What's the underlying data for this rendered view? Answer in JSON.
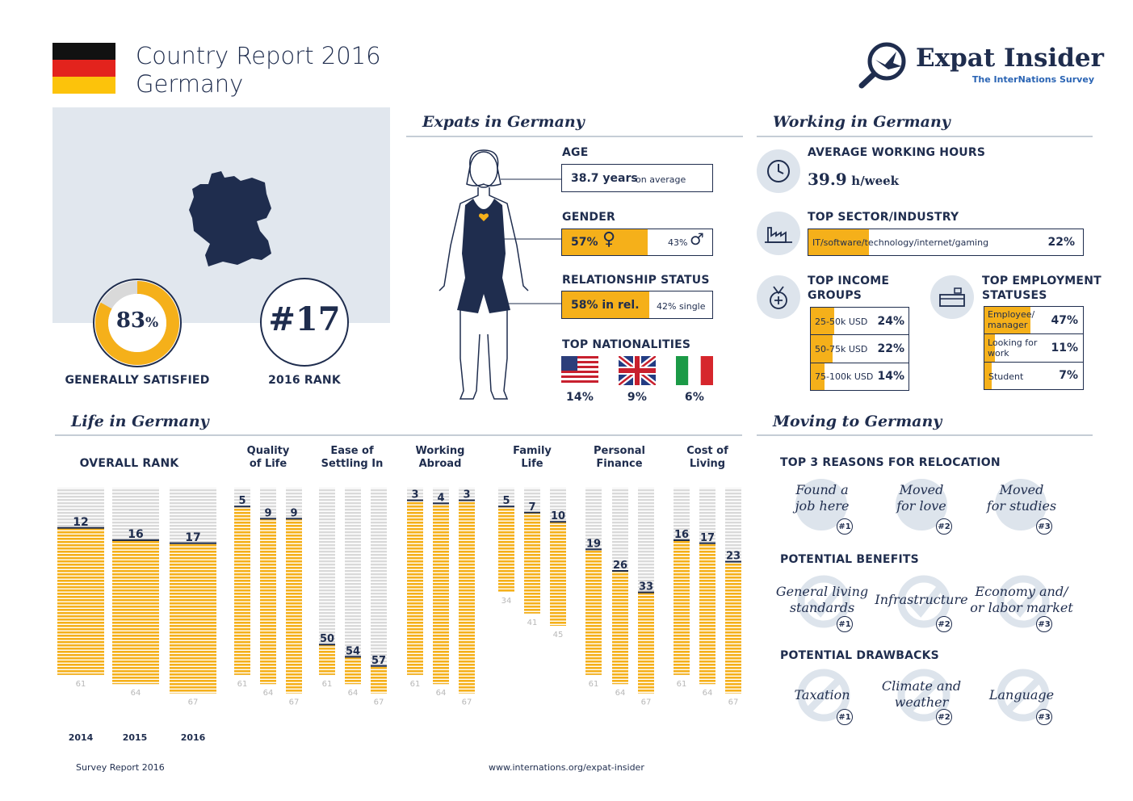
{
  "header": {
    "title_line1": "Country Report 2016",
    "title_line2": "Germany",
    "logo_title": "Expat Insider",
    "logo_subtitle": "The InterNations Survey"
  },
  "overview": {
    "satisfied_pct": "83",
    "satisfied_pct_sign": "%",
    "satisfied_value": 0.83,
    "satisfied_label": "GENERALLY SATISFIED",
    "rank": "#17",
    "rank_label": "2016 RANK"
  },
  "expats": {
    "title": "Expats in Germany",
    "age_label": "AGE",
    "age_value": "38.7 years",
    "age_suffix": "on average",
    "gender_label": "GENDER",
    "female_pct": "57%",
    "male_pct": "43%",
    "female_fraction": 0.57,
    "relationship_label": "RELATIONSHIP STATUS",
    "rel_value": "58% in rel.",
    "single_value": "42% single",
    "rel_fraction": 0.58,
    "nationalities_label": "TOP NATIONALITIES",
    "nationalities": [
      {
        "flag": "usa-flag-icon",
        "pct": "14%"
      },
      {
        "flag": "uk-flag-icon",
        "pct": "9%"
      },
      {
        "flag": "italy-flag-icon",
        "pct": "6%"
      }
    ]
  },
  "working": {
    "title": "Working in Germany",
    "hours_label": "AVERAGE WORKING HOURS",
    "hours_value": "39.9",
    "hours_unit": "h/week",
    "sector_label": "TOP SECTOR/INDUSTRY",
    "sector_name": "IT/software/technology/internet/gaming",
    "sector_pct": "22%",
    "sector_fraction": 0.22,
    "income_label_1": "TOP INCOME",
    "income_label_2": "GROUPS",
    "income": [
      {
        "name": "25-50k USD",
        "pct": "24%",
        "fraction": 0.24
      },
      {
        "name": "50-75k USD",
        "pct": "22%",
        "fraction": 0.22
      },
      {
        "name": "75-100k USD",
        "pct": "14%",
        "fraction": 0.14
      }
    ],
    "employment_label_1": "TOP EMPLOYMENT",
    "employment_label_2": "STATUSES",
    "employment": [
      {
        "name_1": "Employee/",
        "name_2": "manager",
        "pct": "47%",
        "fraction": 0.47
      },
      {
        "name_1": "Looking for",
        "name_2": "work",
        "pct": "11%",
        "fraction": 0.11
      },
      {
        "name_1": "Student",
        "name_2": "",
        "pct": "7%",
        "fraction": 0.07
      }
    ]
  },
  "life": {
    "title": "Life in Germany",
    "overall_label": "OVERALL RANK",
    "years": [
      "2014",
      "2015",
      "2016"
    ],
    "overall": [
      {
        "rank": 12,
        "total": 61
      },
      {
        "rank": 16,
        "total": 64
      },
      {
        "rank": 17,
        "total": 67
      }
    ],
    "categories": [
      {
        "label_1": "Quality",
        "label_2": "of Life",
        "bars": [
          {
            "rank": 5,
            "total": 61
          },
          {
            "rank": 9,
            "total": 64
          },
          {
            "rank": 9,
            "total": 67
          }
        ]
      },
      {
        "label_1": "Ease of",
        "label_2": "Settling In",
        "bars": [
          {
            "rank": 50,
            "total": 61
          },
          {
            "rank": 54,
            "total": 64
          },
          {
            "rank": 57,
            "total": 67
          }
        ]
      },
      {
        "label_1": "Working",
        "label_2": "Abroad",
        "bars": [
          {
            "rank": 3,
            "total": 61
          },
          {
            "rank": 4,
            "total": 64
          },
          {
            "rank": 3,
            "total": 67
          }
        ]
      },
      {
        "label_1": "Family",
        "label_2": "Life",
        "bars": [
          {
            "rank": 5,
            "total": 34
          },
          {
            "rank": 7,
            "total": 41
          },
          {
            "rank": 10,
            "total": 45
          }
        ]
      },
      {
        "label_1": "Personal",
        "label_2": "Finance",
        "bars": [
          {
            "rank": 19,
            "total": 61
          },
          {
            "rank": 26,
            "total": 64
          },
          {
            "rank": 33,
            "total": 67
          }
        ]
      },
      {
        "label_1": "Cost of",
        "label_2": "Living",
        "bars": [
          {
            "rank": 16,
            "total": 61
          },
          {
            "rank": 17,
            "total": 64
          },
          {
            "rank": 23,
            "total": 67
          }
        ]
      }
    ]
  },
  "moving": {
    "title": "Moving to Germany",
    "reasons_label": "TOP 3 REASONS FOR RELOCATION",
    "reasons": [
      {
        "line1": "Found a",
        "line2": "job here",
        "badge": "#1"
      },
      {
        "line1": "Moved",
        "line2": "for love",
        "badge": "#2"
      },
      {
        "line1": "Moved",
        "line2": "for studies",
        "badge": "#3"
      }
    ],
    "benefits_label": "POTENTIAL BENEFITS",
    "benefits": [
      {
        "line1": "General living",
        "line2": "standards",
        "badge": "#1"
      },
      {
        "line1": "Infrastructure",
        "line2": "",
        "badge": "#2"
      },
      {
        "line1": "Economy and/",
        "line2": "or labor market",
        "badge": "#3"
      }
    ],
    "drawbacks_label": "POTENTIAL DRAWBACKS",
    "drawbacks": [
      {
        "line1": "Taxation",
        "line2": "",
        "badge": "#1"
      },
      {
        "line1": "Climate and",
        "line2": "weather",
        "badge": "#2"
      },
      {
        "line1": "Language",
        "line2": "",
        "badge": "#3"
      }
    ]
  },
  "footer": {
    "left": "Survey Report 2016",
    "center": "www.internations.org/expat-insider"
  },
  "colors": {
    "navy": "#1f2d4e",
    "yellow": "#f5b01a",
    "grey": "#d9d9d9",
    "light_blue": "#dde4ec"
  }
}
